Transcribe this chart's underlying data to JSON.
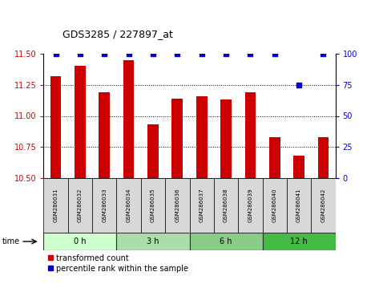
{
  "title": "GDS3285 / 227897_at",
  "samples": [
    "GSM286031",
    "GSM286032",
    "GSM286033",
    "GSM286034",
    "GSM286035",
    "GSM286036",
    "GSM286037",
    "GSM286038",
    "GSM286039",
    "GSM286040",
    "GSM286041",
    "GSM286042"
  ],
  "bar_values": [
    11.32,
    11.4,
    11.19,
    11.45,
    10.93,
    11.14,
    11.16,
    11.13,
    11.19,
    10.83,
    10.68,
    10.83
  ],
  "percentile_values": [
    100,
    100,
    100,
    100,
    100,
    100,
    100,
    100,
    100,
    100,
    75,
    100
  ],
  "ylim": [
    10.5,
    11.5
  ],
  "y2lim": [
    0,
    100
  ],
  "yticks": [
    10.5,
    10.75,
    11.0,
    11.25,
    11.5
  ],
  "y2ticks": [
    0,
    25,
    50,
    75,
    100
  ],
  "bar_color": "#cc0000",
  "percentile_color": "#0000cc",
  "groups": [
    {
      "label": "0 h",
      "start": 0,
      "end": 3,
      "color": "#ccffcc"
    },
    {
      "label": "3 h",
      "start": 3,
      "end": 6,
      "color": "#aaddaa"
    },
    {
      "label": "6 h",
      "start": 6,
      "end": 9,
      "color": "#88cc88"
    },
    {
      "label": "12 h",
      "start": 9,
      "end": 12,
      "color": "#44bb44"
    }
  ],
  "tick_label_color_left": "#cc0000",
  "tick_label_color_right": "#0000cc",
  "sample_box_color": "#d8d8d8",
  "bg_color": "#ffffff"
}
